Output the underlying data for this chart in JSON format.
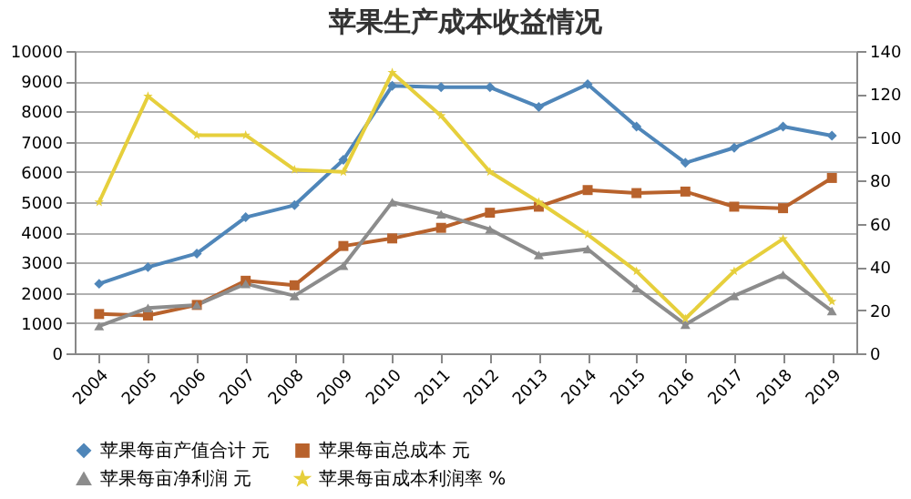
{
  "chart_data": {
    "type": "line",
    "title": "苹果生产成本收益情况",
    "categories": [
      "2004",
      "2005",
      "2006",
      "2007",
      "2008",
      "2009",
      "2010",
      "2011",
      "2012",
      "2013",
      "2014",
      "2015",
      "2016",
      "2017",
      "2018",
      "2019"
    ],
    "ylim": [
      0,
      10000
    ],
    "yticks": [
      0,
      1000,
      2000,
      3000,
      4000,
      5000,
      6000,
      7000,
      8000,
      9000,
      10000
    ],
    "y2lim": [
      0,
      140
    ],
    "y2ticks": [
      0,
      20,
      40,
      60,
      80,
      100,
      120,
      140
    ],
    "grid": "y",
    "legend": "bottom",
    "series": [
      {
        "name": "苹果每亩产值合计 元",
        "color": "#4f86b9",
        "marker": "diamond",
        "values": [
          2300,
          2850,
          3300,
          4500,
          4900,
          6400,
          8850,
          8800,
          8800,
          8150,
          8900,
          7500,
          6300,
          6800,
          7500,
          7200
        ]
      },
      {
        "name": "苹果每亩总成本 元",
        "color": "#b8622c",
        "marker": "square",
        "values": [
          1300,
          1250,
          1600,
          2400,
          2250,
          3550,
          3800,
          4150,
          4650,
          4850,
          5400,
          5300,
          5350,
          4850,
          4800,
          5800
        ]
      },
      {
        "name": "苹果每亩净利润 元",
        "color": "#8c8c8c",
        "marker": "triangle",
        "values": [
          900,
          1500,
          1600,
          2300,
          1900,
          2900,
          5000,
          4600,
          4100,
          3250,
          3450,
          2150,
          950,
          1900,
          2600,
          1400
        ]
      },
      {
        "name": "苹果每亩成本利润率 %",
        "color": "#e6cf3c",
        "marker": "star",
        "axis": "y2",
        "values": [
          70,
          119,
          101,
          101,
          85,
          84,
          130,
          110,
          84,
          70,
          55,
          38,
          16,
          38,
          53,
          24
        ]
      }
    ]
  }
}
